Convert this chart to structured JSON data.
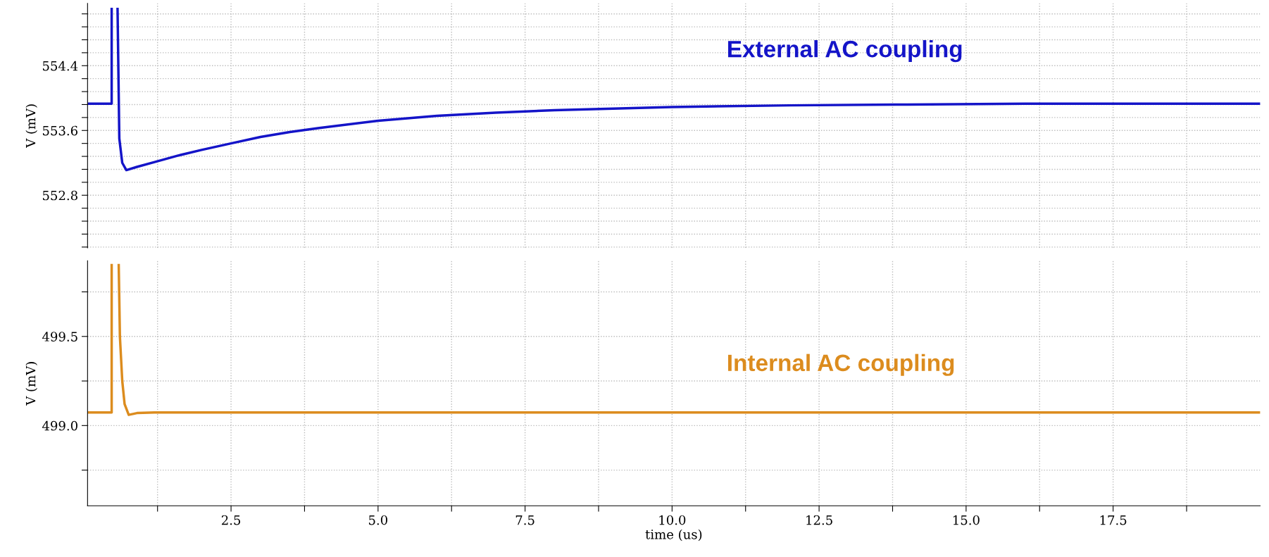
{
  "chart_data": [
    {
      "type": "line",
      "ylabel": "V (mV)",
      "xlim": [
        0.06,
        20
      ],
      "ylim": [
        552.15,
        555.17
      ],
      "tick_labels": "y",
      "grid": true,
      "legend": false,
      "marker": "none",
      "line_style": "solid",
      "xticks": [
        {
          "value": 1.25,
          "label": null
        },
        {
          "value": 2.5,
          "label": null
        },
        {
          "value": 3.75,
          "label": null
        },
        {
          "value": 5.0,
          "label": null
        },
        {
          "value": 6.25,
          "label": null
        },
        {
          "value": 7.5,
          "label": null
        },
        {
          "value": 8.75,
          "label": null
        },
        {
          "value": 10.0,
          "label": null
        },
        {
          "value": 11.25,
          "label": null
        },
        {
          "value": 12.5,
          "label": null
        },
        {
          "value": 13.75,
          "label": null
        },
        {
          "value": 15.0,
          "label": null
        },
        {
          "value": 16.25,
          "label": null
        },
        {
          "value": 17.5,
          "label": null
        },
        {
          "value": 18.75,
          "label": null
        }
      ],
      "yticks": [
        {
          "value": 552.16,
          "label": null
        },
        {
          "value": 552.32,
          "label": null
        },
        {
          "value": 552.48,
          "label": null
        },
        {
          "value": 552.64,
          "label": null
        },
        {
          "value": 552.8,
          "label": "552.8"
        },
        {
          "value": 552.96,
          "label": null
        },
        {
          "value": 553.12,
          "label": null
        },
        {
          "value": 553.28,
          "label": null
        },
        {
          "value": 553.44,
          "label": null
        },
        {
          "value": 553.6,
          "label": "553.6"
        },
        {
          "value": 553.76,
          "label": null
        },
        {
          "value": 553.92,
          "label": null
        },
        {
          "value": 554.08,
          "label": null
        },
        {
          "value": 554.24,
          "label": null
        },
        {
          "value": 554.4,
          "label": "554.4"
        },
        {
          "value": 554.56,
          "label": null
        },
        {
          "value": 554.72,
          "label": null
        },
        {
          "value": 554.88,
          "label": null
        },
        {
          "value": 555.04,
          "label": null
        }
      ],
      "series": [
        {
          "name": "External AC coupling",
          "color": "#1414c8",
          "x": [
            0.06,
            0.47,
            0.47,
            0.52,
            0.57,
            0.6,
            0.65,
            0.72,
            0.9,
            1.2,
            1.6,
            2.0,
            2.5,
            3.0,
            3.5,
            4.0,
            5.0,
            6.0,
            7.0,
            8.0,
            9.0,
            10.0,
            12.0,
            14.0,
            16.0,
            18.0,
            20.0
          ],
          "values": [
            553.93,
            553.93,
            555.1,
            null,
            555.1,
            553.5,
            553.2,
            553.11,
            553.15,
            553.21,
            553.29,
            553.36,
            553.44,
            553.52,
            553.58,
            553.63,
            553.72,
            553.78,
            553.82,
            553.85,
            553.87,
            553.89,
            553.91,
            553.92,
            553.93,
            553.93,
            553.93
          ]
        }
      ]
    },
    {
      "type": "line",
      "ylabel": "V (mV)",
      "xlabel": "time (us)",
      "xlim": [
        0.06,
        20
      ],
      "ylim": [
        498.55,
        499.925
      ],
      "grid": true,
      "legend": false,
      "marker": "none",
      "line_style": "solid",
      "xticks": [
        {
          "value": 1.25,
          "label": null
        },
        2.5,
        {
          "value": 3.75,
          "label": null
        },
        {
          "value": 5,
          "label": "5.0"
        },
        {
          "value": 6.25,
          "label": null
        },
        7.5,
        {
          "value": 8.75,
          "label": null
        },
        {
          "value": 10,
          "label": "10.0"
        },
        {
          "value": 11.25,
          "label": null
        },
        12.5,
        {
          "value": 13.75,
          "label": null
        },
        {
          "value": 15,
          "label": "15.0"
        },
        {
          "value": 16.25,
          "label": null
        },
        17.5,
        {
          "value": 18.75,
          "label": null
        }
      ],
      "yticks": [
        {
          "value": 498.75,
          "label": null
        },
        {
          "value": 499,
          "label": "499.0"
        },
        {
          "value": 499.25,
          "label": null
        },
        499.5,
        {
          "value": 499.75,
          "label": null
        }
      ],
      "series": [
        {
          "name": "Internal AC coupling",
          "color": "#dc8c1e",
          "x": [
            0.06,
            0.47,
            0.47,
            0.53,
            0.59,
            0.61,
            0.65,
            0.69,
            0.76,
            0.9,
            1.2,
            20.0
          ],
          "values": [
            499.073,
            499.073,
            499.9,
            null,
            499.9,
            499.5,
            499.25,
            499.12,
            499.06,
            499.07,
            499.073,
            499.073
          ]
        }
      ]
    }
  ]
}
